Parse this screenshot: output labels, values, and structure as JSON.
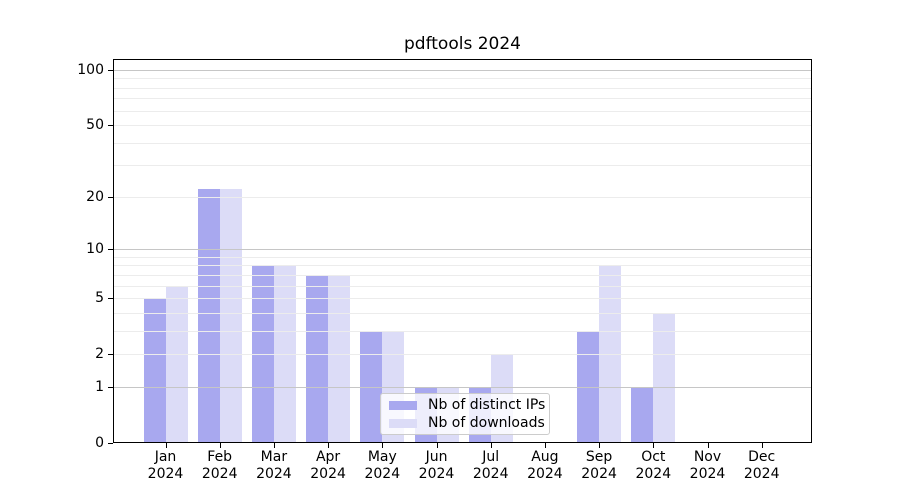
{
  "title": "pdftools 2024",
  "chart_data": {
    "type": "bar",
    "title": "pdftools 2024",
    "categories": [
      "Jan",
      "Feb",
      "Mar",
      "Apr",
      "May",
      "Jun",
      "Jul",
      "Aug",
      "Sep",
      "Oct",
      "Nov",
      "Dec"
    ],
    "year": "2024",
    "series": [
      {
        "name": "Nb of distinct IPs",
        "color": "#a8a8ef",
        "values": [
          5,
          22,
          8,
          7,
          3,
          1,
          1,
          0,
          3,
          1,
          0,
          0
        ]
      },
      {
        "name": "Nb of downloads",
        "color": "#dcdcf7",
        "values": [
          6,
          22,
          8,
          7,
          3,
          1,
          2,
          0,
          8,
          4,
          0,
          0
        ]
      }
    ],
    "yscale": "log1p",
    "ylim": [
      0,
      115
    ],
    "yticks_labeled": [
      0,
      1,
      2,
      5,
      10,
      20,
      50,
      100
    ],
    "grid_minor_values": [
      2,
      3,
      4,
      5,
      6,
      7,
      8,
      9,
      20,
      30,
      40,
      50,
      60,
      70,
      80,
      90
    ],
    "grid_major_values": [
      1,
      10,
      100
    ],
    "grid": "horizontal",
    "legend_position": "lower center"
  },
  "colors": {
    "bar_distinct_ips": "#a8a8ef",
    "bar_downloads": "#dcdcf7",
    "grid_minor": "#ececec",
    "grid_major": "#c6c6c6",
    "spine": "#000000",
    "legend_border": "#cccccc"
  }
}
